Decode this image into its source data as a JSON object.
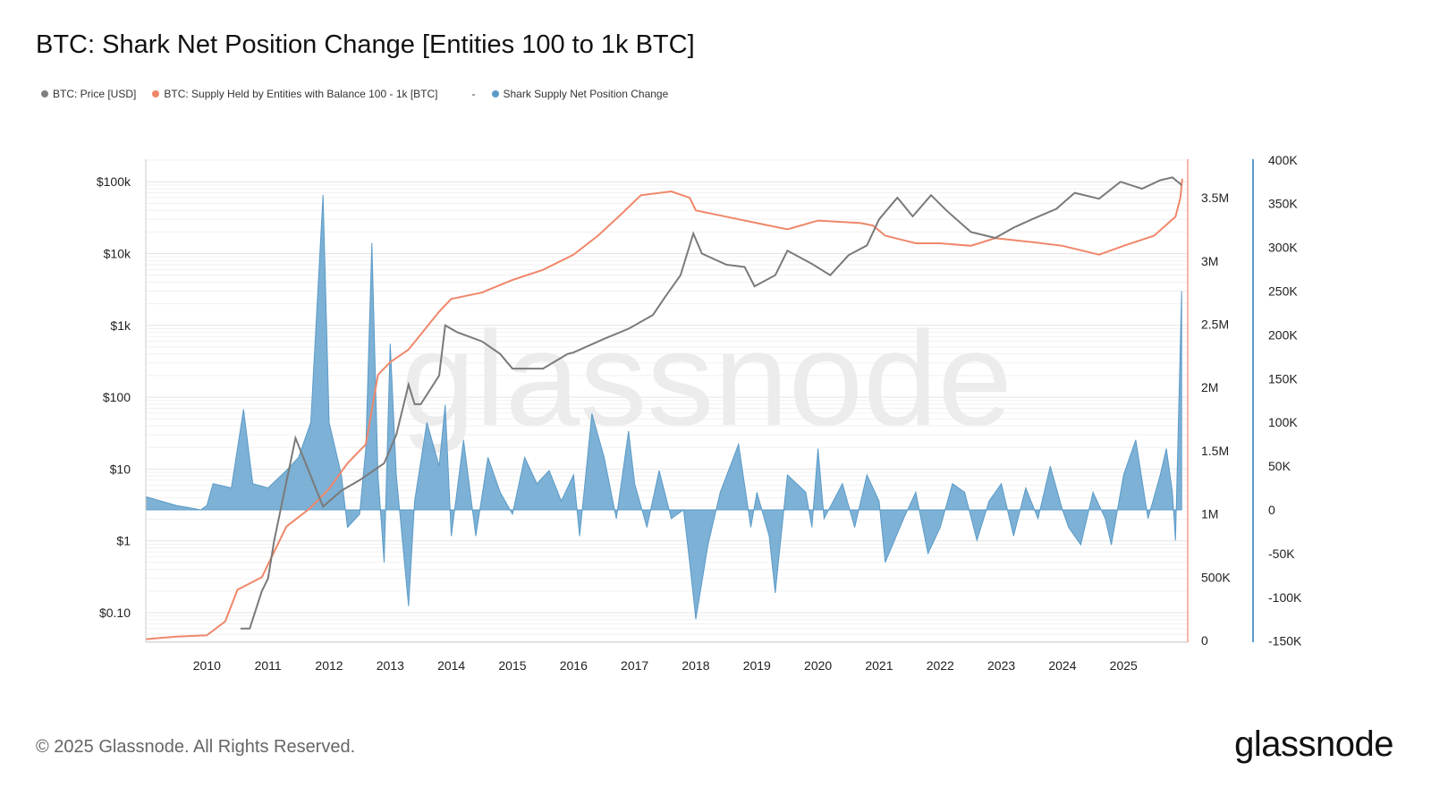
{
  "title": "BTC: Shark Net Position Change [Entities 100 to 1k BTC]",
  "legend": [
    {
      "label": "BTC: Price [USD]",
      "color": "#808080"
    },
    {
      "label": "BTC: Supply Held by Entities with Balance 100 - 1k [BTC]",
      "color": "#f0876a"
    },
    {
      "label": "-",
      "color": ""
    },
    {
      "label": "Shark Supply Net Position Change",
      "color": "#5b9bc8"
    }
  ],
  "watermark": "glassnode",
  "footer": "© 2025 Glassnode. All Rights Reserved.",
  "logo": "glassnode",
  "chart_data": {
    "type": "line",
    "title": "BTC: Shark Net Position Change [Entities 100 to 1k BTC]",
    "grid": true,
    "legend_placement": "top-left",
    "x_ticks": [
      "2010",
      "2011",
      "2012",
      "2013",
      "2014",
      "2015",
      "2016",
      "2017",
      "2018",
      "2019",
      "2020",
      "2021",
      "2022",
      "2023",
      "2024",
      "2025"
    ],
    "xlim": [
      2009.0,
      2026.05
    ],
    "axes": {
      "price": {
        "scale": "log",
        "ticks": [
          "$0.10",
          "$1",
          "$10",
          "$100",
          "$1k",
          "$10k",
          "$100k"
        ],
        "tick_values": [
          0.1,
          1,
          10,
          100,
          1000,
          10000,
          100000
        ]
      },
      "supply": {
        "ticks": [
          "0",
          "500K",
          "1M",
          "1.5M",
          "2M",
          "2.5M",
          "3M",
          "3.5M"
        ],
        "tick_values": [
          0,
          0.5,
          1,
          1.5,
          2,
          2.5,
          3,
          3.5
        ]
      },
      "net_change": {
        "ticks": [
          "-150K",
          "-100K",
          "-50K",
          "0",
          "50K",
          "100K",
          "150K",
          "200K",
          "250K",
          "300K",
          "350K",
          "400K"
        ],
        "tick_values": [
          -150,
          -100,
          -50,
          0,
          50,
          100,
          150,
          200,
          250,
          300,
          350,
          400
        ]
      }
    },
    "series": [
      {
        "name": "BTC: Price [USD]",
        "axis": "price",
        "color": "#808080",
        "x": [
          2010.55,
          2010.7,
          2010.9,
          2011.0,
          2011.1,
          2011.45,
          2011.7,
          2011.9,
          2012.2,
          2012.5,
          2012.9,
          2013.1,
          2013.3,
          2013.4,
          2013.5,
          2013.8,
          2013.9,
          2014.1,
          2014.5,
          2014.8,
          2015.0,
          2015.5,
          2015.9,
          2016.0,
          2016.5,
          2016.9,
          2017.0,
          2017.3,
          2017.5,
          2017.75,
          2017.96,
          2018.1,
          2018.5,
          2018.8,
          2018.96,
          2019.3,
          2019.5,
          2019.9,
          2020.2,
          2020.5,
          2020.8,
          2021.0,
          2021.3,
          2021.55,
          2021.85,
          2022.1,
          2022.5,
          2022.9,
          2023.2,
          2023.5,
          2023.9,
          2024.2,
          2024.6,
          2024.95,
          2025.3,
          2025.6,
          2025.8,
          2025.95
        ],
        "y": [
          0.06,
          0.06,
          0.2,
          0.3,
          1,
          27,
          8,
          3,
          5,
          7,
          12,
          30,
          150,
          80,
          80,
          200,
          1000,
          800,
          600,
          400,
          250,
          250,
          400,
          420,
          650,
          900,
          1000,
          1400,
          2500,
          5000,
          19000,
          10000,
          7000,
          6500,
          3500,
          5000,
          11000,
          7200,
          5000,
          9500,
          13000,
          30000,
          60000,
          33000,
          65000,
          40000,
          20000,
          16500,
          23000,
          30000,
          42000,
          70000,
          58000,
          100000,
          80000,
          105000,
          115000,
          90000
        ]
      },
      {
        "name": "BTC: Supply Held by Entities with Balance 100 - 1k [BTC]",
        "axis": "supply",
        "color": "#f0876a",
        "x": [
          2009.0,
          2009.5,
          2010.0,
          2010.3,
          2010.5,
          2010.9,
          2011.3,
          2011.7,
          2012.0,
          2012.3,
          2012.6,
          2012.8,
          2013.0,
          2013.3,
          2013.8,
          2014.0,
          2014.5,
          2015.0,
          2015.5,
          2016.0,
          2016.4,
          2016.8,
          2017.1,
          2017.6,
          2017.9,
          2018.0,
          2018.5,
          2019.0,
          2019.5,
          2020.0,
          2020.7,
          2020.9,
          2021.1,
          2021.6,
          2022.0,
          2022.5,
          2022.9,
          2023.5,
          2024.0,
          2024.6,
          2025.0,
          2025.5,
          2025.85,
          2025.93,
          2025.96
        ],
        "y": [
          0.01,
          0.03,
          0.04,
          0.15,
          0.4,
          0.5,
          0.9,
          1.05,
          1.2,
          1.4,
          1.55,
          2.1,
          2.2,
          2.3,
          2.6,
          2.7,
          2.75,
          2.85,
          2.93,
          3.05,
          3.2,
          3.38,
          3.52,
          3.55,
          3.5,
          3.4,
          3.35,
          3.3,
          3.25,
          3.32,
          3.3,
          3.28,
          3.2,
          3.14,
          3.14,
          3.12,
          3.18,
          3.15,
          3.12,
          3.05,
          3.12,
          3.2,
          3.35,
          3.5,
          3.65
        ]
      },
      {
        "name": "Shark Supply Net Position Change",
        "axis": "net_change",
        "color": "#5b9bc8",
        "x": [
          2009.0,
          2009.5,
          2009.9,
          2010.0,
          2010.1,
          2010.4,
          2010.6,
          2010.75,
          2011.0,
          2011.3,
          2011.5,
          2011.7,
          2011.9,
          2012.0,
          2012.2,
          2012.3,
          2012.5,
          2012.6,
          2012.7,
          2012.8,
          2012.9,
          2013.0,
          2013.1,
          2013.3,
          2013.4,
          2013.6,
          2013.8,
          2013.9,
          2014.0,
          2014.2,
          2014.4,
          2014.6,
          2014.8,
          2015.0,
          2015.2,
          2015.4,
          2015.6,
          2015.8,
          2016.0,
          2016.1,
          2016.3,
          2016.5,
          2016.7,
          2016.9,
          2017.0,
          2017.2,
          2017.4,
          2017.6,
          2017.8,
          2017.9,
          2018.0,
          2018.2,
          2018.4,
          2018.7,
          2018.9,
          2019.0,
          2019.2,
          2019.3,
          2019.5,
          2019.8,
          2019.9,
          2020.0,
          2020.1,
          2020.4,
          2020.6,
          2020.8,
          2021.0,
          2021.1,
          2021.4,
          2021.6,
          2021.8,
          2022.0,
          2022.2,
          2022.4,
          2022.6,
          2022.8,
          2023.0,
          2023.2,
          2023.4,
          2023.6,
          2023.8,
          2024.0,
          2024.1,
          2024.3,
          2024.5,
          2024.7,
          2024.8,
          2025.0,
          2025.2,
          2025.4,
          2025.6,
          2025.7,
          2025.8,
          2025.85,
          2025.95
        ],
        "y": [
          15,
          5,
          0,
          5,
          30,
          25,
          115,
          30,
          25,
          45,
          60,
          100,
          360,
          100,
          40,
          -20,
          -5,
          70,
          305,
          40,
          -60,
          190,
          40,
          -110,
          10,
          100,
          50,
          120,
          -30,
          80,
          -30,
          60,
          20,
          -5,
          60,
          30,
          45,
          10,
          40,
          -30,
          110,
          60,
          -10,
          90,
          30,
          -20,
          45,
          -10,
          0,
          -60,
          -125,
          -40,
          20,
          75,
          -20,
          20,
          -30,
          -95,
          40,
          20,
          -20,
          70,
          -10,
          30,
          -20,
          40,
          10,
          -60,
          -10,
          20,
          -50,
          -20,
          30,
          20,
          -35,
          10,
          30,
          -30,
          25,
          -10,
          50,
          0,
          -20,
          -40,
          20,
          -10,
          -40,
          40,
          80,
          -10,
          40,
          70,
          20,
          -35,
          250
        ]
      }
    ]
  }
}
